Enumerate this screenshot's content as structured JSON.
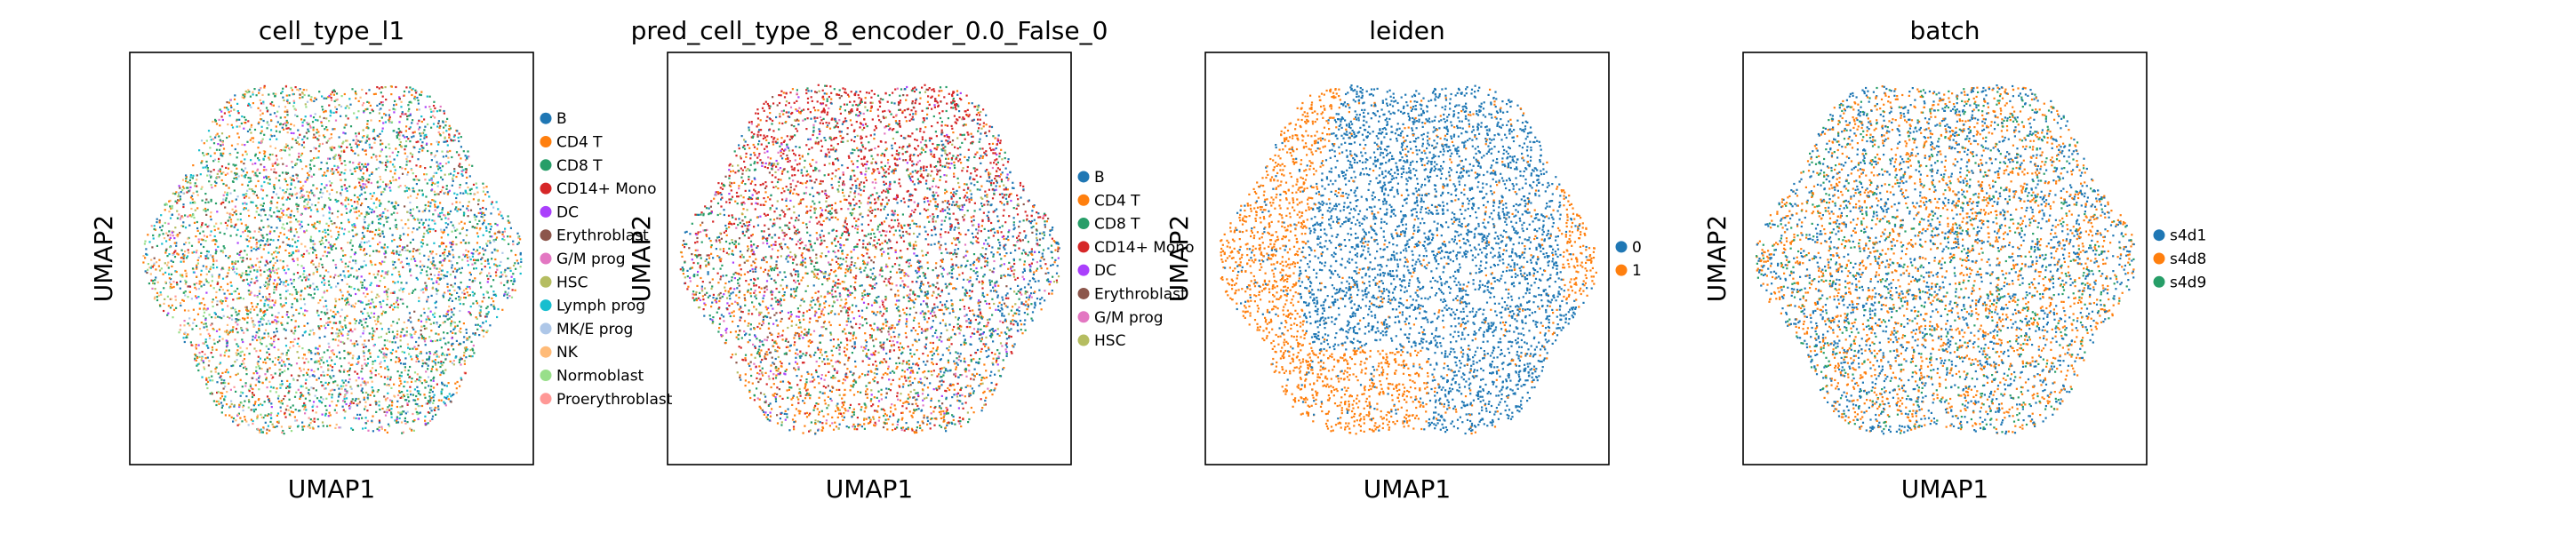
{
  "chart_data": [
    {
      "type": "scatter",
      "title": "cell_type_l1",
      "xlabel": "UMAP1",
      "ylabel": "UMAP2",
      "legend_position": "right",
      "legend": [
        {
          "label": "B",
          "color": "#1f77b4"
        },
        {
          "label": "CD4 T",
          "color": "#ff7f0e"
        },
        {
          "label": "CD8 T",
          "color": "#279e68"
        },
        {
          "label": "CD14+ Mono",
          "color": "#d62728"
        },
        {
          "label": "DC",
          "color": "#aa40fc"
        },
        {
          "label": "Erythroblast",
          "color": "#8c564b"
        },
        {
          "label": "G/M prog",
          "color": "#e377c2"
        },
        {
          "label": "HSC",
          "color": "#b5bd61"
        },
        {
          "label": "Lymph prog",
          "color": "#17becf"
        },
        {
          "label": "MK/E prog",
          "color": "#aec7e8"
        },
        {
          "label": "NK",
          "color": "#ffbb78"
        },
        {
          "label": "Normoblast",
          "color": "#98df8a"
        },
        {
          "label": "Proerythroblast",
          "color": "#ff9896"
        }
      ]
    },
    {
      "type": "scatter",
      "title": "pred_cell_type_8_encoder_0.0_False_0",
      "xlabel": "UMAP1",
      "ylabel": "UMAP2",
      "legend_position": "right",
      "legend": [
        {
          "label": "B",
          "color": "#1f77b4"
        },
        {
          "label": "CD4 T",
          "color": "#ff7f0e"
        },
        {
          "label": "CD8 T",
          "color": "#279e68"
        },
        {
          "label": "CD14+ Mono",
          "color": "#d62728"
        },
        {
          "label": "DC",
          "color": "#aa40fc"
        },
        {
          "label": "Erythroblast",
          "color": "#8c564b"
        },
        {
          "label": "G/M prog",
          "color": "#e377c2"
        },
        {
          "label": "HSC",
          "color": "#b5bd61"
        }
      ]
    },
    {
      "type": "scatter",
      "title": "leiden",
      "xlabel": "UMAP1",
      "ylabel": "UMAP2",
      "legend_position": "right",
      "legend": [
        {
          "label": "0",
          "color": "#1f77b4"
        },
        {
          "label": "1",
          "color": "#ff7f0e"
        }
      ]
    },
    {
      "type": "scatter",
      "title": "batch",
      "xlabel": "UMAP1",
      "ylabel": "UMAP2",
      "legend_position": "right",
      "legend": [
        {
          "label": "s4d1",
          "color": "#1f77b4"
        },
        {
          "label": "s4d8",
          "color": "#ff7f0e"
        },
        {
          "label": "s4d9",
          "color": "#279e68"
        }
      ]
    }
  ]
}
